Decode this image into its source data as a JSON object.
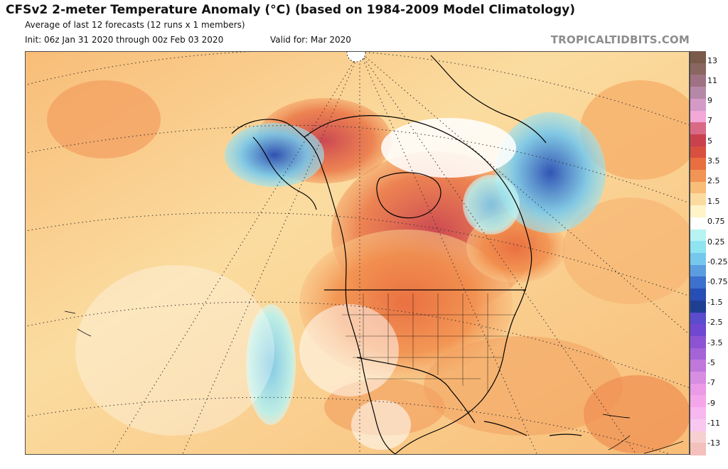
{
  "header": {
    "title": "CFSv2 2-meter Temperature Anomaly (°C) (based on 1984-2009 Model Climatology)",
    "subtitle": "Average of last 12 forecasts (12 runs x 1 members)",
    "init": "Init: 06z Jan 31 2020 through 00z Feb 03 2020",
    "valid": "Valid for: Mar 2020",
    "credit": "TROPICALTIDBITS.COM"
  },
  "map": {
    "region": "North America",
    "variable": "2-meter temperature anomaly",
    "units": "°C"
  },
  "legend": {
    "labels": [
      "13",
      "11",
      "9",
      "7",
      "5",
      "3.5",
      "2.5",
      "1.5",
      "0.75",
      "0.25",
      "-0.25",
      "-0.75",
      "-1.5",
      "-2.5",
      "-3.5",
      "-5",
      "-7",
      "-9",
      "-11",
      "-13"
    ],
    "colors": [
      "#7a5a4a",
      "#8a6660",
      "#9e7282",
      "#b688a8",
      "#d39ac7",
      "#f3a8d8",
      "#d96a86",
      "#c9414f",
      "#d8503f",
      "#e96e40",
      "#f29454",
      "#f8bd78",
      "#fbdca0",
      "#fff3c8",
      "#ffffff",
      "#b6f3f2",
      "#8ee4f0",
      "#75c7ec",
      "#5b9de0",
      "#3d70cf",
      "#274eb5",
      "#1f3f93",
      "#5a4ccd",
      "#7047d0",
      "#8d53d4",
      "#a563d8",
      "#c077dc",
      "#d68de2",
      "#ea9ae7",
      "#f5a6ea",
      "#f7b7ef",
      "#f8c8f1",
      "#f6d0d0",
      "#f4c0bc"
    ]
  },
  "colors": {
    "land_line": "#000000",
    "grid_line": "#333333",
    "credit": "#8c8c8c",
    "frame": "#4d4d4d"
  },
  "icons": {
    "map": "map-icon"
  }
}
